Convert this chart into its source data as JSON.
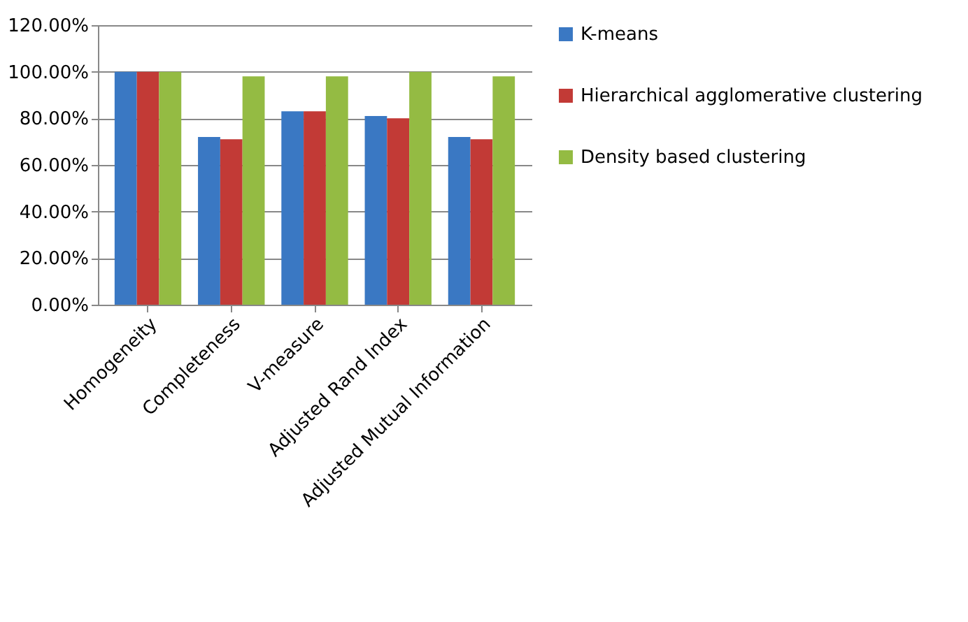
{
  "chart_data": {
    "type": "bar",
    "categories": [
      "Homogeneity",
      "Completeness",
      "V-measure",
      "Adjusted Rand Index",
      "Adjusted Mutual  Information"
    ],
    "series": [
      {
        "name": "K-means",
        "color": "#3a78c3",
        "values": [
          100,
          72,
          83,
          81,
          72
        ]
      },
      {
        "name": "Hierarchical agglomerative clustering",
        "color": "#c23a36",
        "values": [
          100,
          71,
          83,
          80,
          71
        ]
      },
      {
        "name": "Density based clustering",
        "color": "#94bb43",
        "values": [
          100,
          98,
          98,
          100,
          98
        ]
      }
    ],
    "ylim": [
      0,
      120
    ],
    "yticks": [
      {
        "value": 0,
        "label": "0.00%"
      },
      {
        "value": 20,
        "label": "20.00%"
      },
      {
        "value": 40,
        "label": "40.00%"
      },
      {
        "value": 60,
        "label": "60.00%"
      },
      {
        "value": 80,
        "label": "80.00%"
      },
      {
        "value": 100,
        "label": "100.00%"
      },
      {
        "value": 120,
        "label": "120.00%"
      }
    ],
    "grid": "y",
    "legend": "right"
  }
}
